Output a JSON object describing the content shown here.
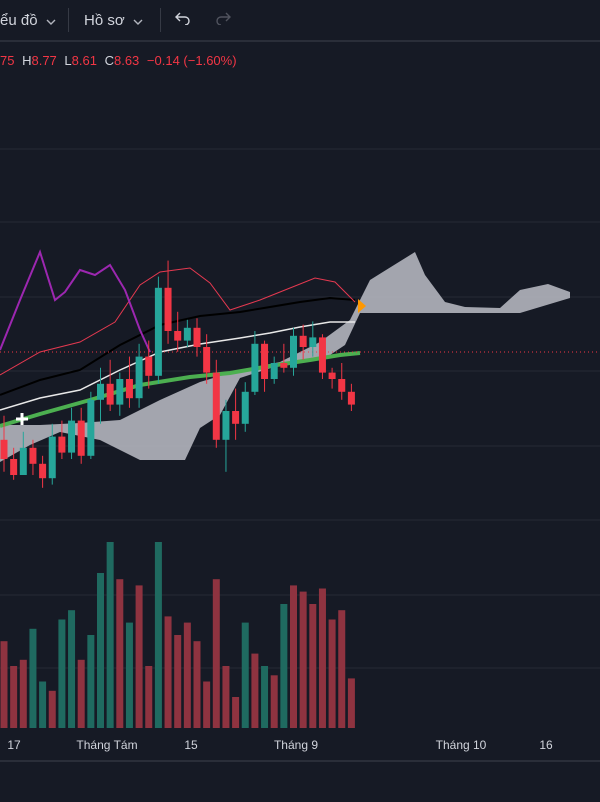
{
  "toolbar": {
    "chart_type_label": "ểu đồ",
    "profile_label": "Hồ sơ",
    "undo_icon": "undo-icon",
    "redo_icon": "redo-icon"
  },
  "ohlc": {
    "o_value": "75",
    "h_key": "H",
    "h_value": "8.77",
    "l_key": "L",
    "l_value": "8.61",
    "c_key": "C",
    "c_value": "8.63",
    "change": "−0.14 (−1.60%)"
  },
  "x_axis": {
    "labels": [
      "17",
      "Tháng Tám",
      "15",
      "Tháng 9",
      "Tháng 10",
      "16"
    ]
  },
  "colors": {
    "up": "#26a69a",
    "down": "#f23645",
    "up_volume": "#1f6a60",
    "down_volume": "#8f3340",
    "cloud": "#b2b5be",
    "ma_green": "#4caf50",
    "background": "#161a25"
  },
  "chart_data": {
    "type": "candlestick",
    "candles": [
      [
        8.1,
        8.25,
        7.9,
        7.98
      ],
      [
        7.98,
        8.05,
        7.85,
        7.88
      ],
      [
        7.88,
        8.15,
        7.88,
        8.05
      ],
      [
        8.05,
        8.1,
        7.88,
        7.95
      ],
      [
        7.95,
        8.0,
        7.8,
        7.86
      ],
      [
        7.86,
        8.2,
        7.82,
        8.12
      ],
      [
        8.12,
        8.22,
        7.98,
        8.02
      ],
      [
        8.02,
        8.3,
        7.98,
        8.22
      ],
      [
        8.22,
        8.3,
        7.95,
        8.0
      ],
      [
        8.0,
        8.4,
        7.98,
        8.35
      ],
      [
        8.35,
        8.55,
        8.2,
        8.45
      ],
      [
        8.45,
        8.6,
        8.28,
        8.32
      ],
      [
        8.32,
        8.52,
        8.25,
        8.48
      ],
      [
        8.48,
        8.62,
        8.3,
        8.36
      ],
      [
        8.36,
        8.7,
        8.3,
        8.62
      ],
      [
        8.62,
        8.72,
        8.42,
        8.5
      ],
      [
        8.5,
        9.12,
        8.45,
        9.05
      ],
      [
        9.05,
        9.22,
        8.7,
        8.78
      ],
      [
        8.78,
        8.9,
        8.65,
        8.72
      ],
      [
        8.72,
        8.85,
        8.68,
        8.8
      ],
      [
        8.8,
        8.86,
        8.62,
        8.68
      ],
      [
        8.68,
        8.76,
        8.45,
        8.52
      ],
      [
        8.52,
        8.6,
        8.05,
        8.1
      ],
      [
        8.1,
        8.35,
        7.9,
        8.28
      ],
      [
        8.28,
        8.42,
        8.1,
        8.2
      ],
      [
        8.2,
        8.46,
        8.15,
        8.4
      ],
      [
        8.4,
        8.78,
        8.38,
        8.7
      ],
      [
        8.7,
        8.72,
        8.4,
        8.48
      ],
      [
        8.48,
        8.62,
        8.45,
        8.58
      ],
      [
        8.58,
        8.7,
        8.52,
        8.55
      ],
      [
        8.55,
        8.8,
        8.5,
        8.75
      ],
      [
        8.75,
        8.82,
        8.6,
        8.68
      ],
      [
        8.68,
        8.84,
        8.62,
        8.74
      ],
      [
        8.74,
        8.76,
        8.48,
        8.52
      ],
      [
        8.52,
        8.55,
        8.42,
        8.48
      ],
      [
        8.48,
        8.58,
        8.35,
        8.4
      ],
      [
        8.4,
        8.45,
        8.28,
        8.32
      ]
    ],
    "last_price": 8.63,
    "volume": [
      28,
      20,
      22,
      32,
      15,
      12,
      35,
      38,
      22,
      30,
      50,
      60,
      48,
      34,
      46,
      20,
      60,
      36,
      30,
      34,
      28,
      15,
      48,
      20,
      10,
      34,
      24,
      20,
      17,
      40,
      46,
      44,
      40,
      45,
      35,
      38,
      16
    ],
    "volume_colors": [
      "down",
      "down",
      "down",
      "up",
      "up",
      "down",
      "up",
      "up",
      "down",
      "up",
      "up",
      "up",
      "down",
      "up",
      "down",
      "down",
      "up",
      "down",
      "down",
      "down",
      "down",
      "down",
      "down",
      "down",
      "down",
      "up",
      "down",
      "up",
      "down",
      "up",
      "down",
      "down",
      "down",
      "down",
      "down",
      "down",
      "down"
    ],
    "time_axis_labels": [
      "17",
      "Tháng Tám",
      "15",
      "Tháng 9",
      "Tháng 10",
      "16"
    ]
  }
}
